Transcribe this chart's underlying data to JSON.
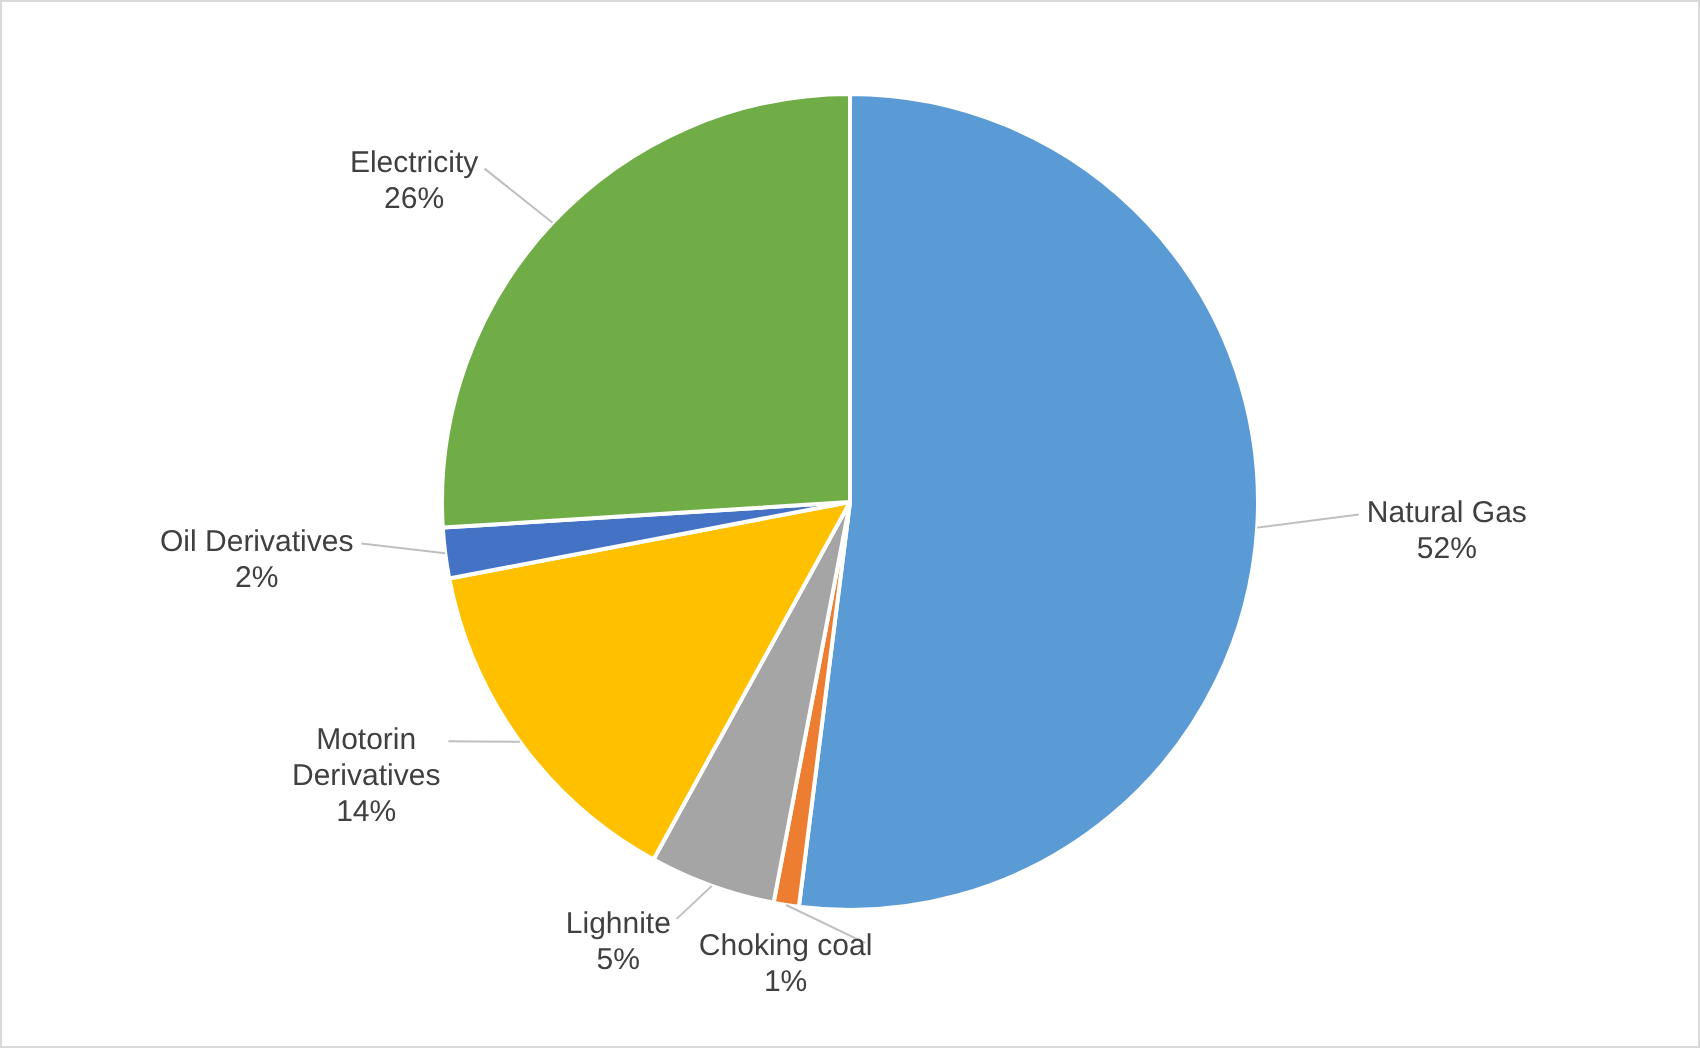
{
  "chart_data": {
    "type": "pie",
    "categories": [
      "Natural Gas",
      "Choking coal",
      "Lighnite",
      "Motorin Derivatives",
      "Oil Derivatives",
      "Electricity"
    ],
    "values": [
      52,
      1,
      5,
      14,
      2,
      26
    ],
    "value_labels": [
      "52%",
      "1%",
      "5%",
      "14%",
      "2%",
      "26%"
    ],
    "colors": [
      "#5b9bd5",
      "#ed7d31",
      "#a5a5a5",
      "#ffc000",
      "#4472c4",
      "#70ad47"
    ],
    "legend": false
  }
}
